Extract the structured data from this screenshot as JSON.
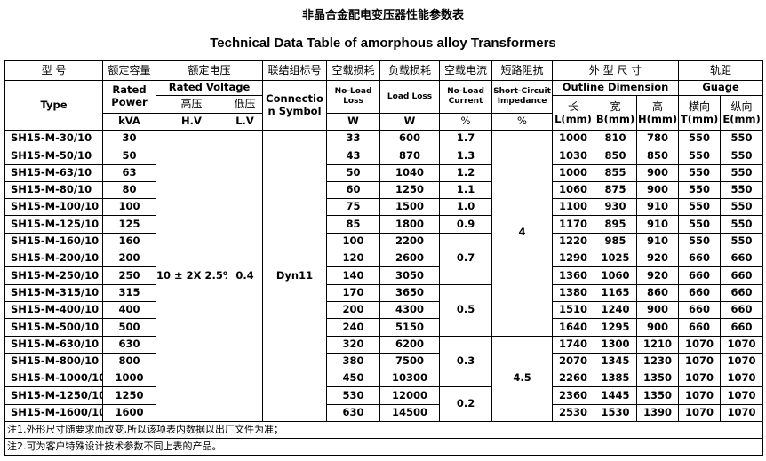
{
  "title_cn": "非晶合金配电变压器性能参数表",
  "title_en": "Technical Data Table of amorphous  alloy Transformers",
  "header": {
    "type_cn": "型  号",
    "type_en": "Type",
    "power_cn": "额定容量",
    "power_en": "Rated Power",
    "power_unit": "kVA",
    "voltage_cn": "额定电压",
    "voltage_en": "Rated Voltage",
    "hv_cn": "高压",
    "hv_en": "H.V",
    "lv_cn": "低压",
    "lv_en": "L.V",
    "conn_cn": "联结组标号",
    "conn_en": "Connection Symbol",
    "nll_cn": "空载损耗",
    "nll_en": "No-Load Loss",
    "nll_unit": "W",
    "ll_cn": "负载损耗",
    "ll_en": "Load Loss",
    "ll_unit": "W",
    "nlc_cn": "空载电流",
    "nlc_en": "No-Load Current",
    "nlc_unit": "%",
    "imp_cn": "短路阻抗",
    "imp_en": "Short-Circuit Impedance",
    "imp_unit": "%",
    "dim_cn": "外 型 尺 寸",
    "dim_en": "Outline Dimension",
    "l_cn": "长",
    "l_en": "L(mm)",
    "b_cn": "宽",
    "b_en": "B(mm)",
    "h_cn": "高",
    "h_en": "H(mm)",
    "gauge_cn": "轨距",
    "gauge_en": "Guage",
    "t_cn": "横向",
    "t_en": "T(mm)",
    "e_cn": "纵向",
    "e_en": "E(mm)"
  },
  "common": {
    "hv": "10 ± 2X 2.5%",
    "lv": "0.4",
    "conn": "Dyn11"
  },
  "rows": [
    [
      "SH15-M-30/10",
      "30",
      "33",
      "600",
      "1000",
      "810",
      "780",
      "550",
      "550"
    ],
    [
      "SH15-M-50/10",
      "50",
      "43",
      "870",
      "1030",
      "850",
      "850",
      "550",
      "550"
    ],
    [
      "SH15-M-63/10",
      "63",
      "50",
      "1040",
      "1000",
      "855",
      "900",
      "550",
      "550"
    ],
    [
      "SH15-M-80/10",
      "80",
      "60",
      "1250",
      "1060",
      "875",
      "900",
      "550",
      "550"
    ],
    [
      "SH15-M-100/10",
      "100",
      "75",
      "1500",
      "1100",
      "930",
      "910",
      "550",
      "550"
    ],
    [
      "SH15-M-125/10",
      "125",
      "85",
      "1800",
      "1170",
      "895",
      "910",
      "550",
      "550"
    ],
    [
      "SH15-M-160/10",
      "160",
      "100",
      "2200",
      "1220",
      "985",
      "910",
      "550",
      "550"
    ],
    [
      "SH15-M-200/10",
      "200",
      "120",
      "2600",
      "1290",
      "1025",
      "920",
      "660",
      "660"
    ],
    [
      "SH15-M-250/10",
      "250",
      "140",
      "3050",
      "1360",
      "1060",
      "920",
      "660",
      "660"
    ],
    [
      "SH15-M-315/10",
      "315",
      "170",
      "3650",
      "1380",
      "1165",
      "860",
      "660",
      "660"
    ],
    [
      "SH15-M-400/10",
      "400",
      "200",
      "4300",
      "1510",
      "1240",
      "900",
      "660",
      "660"
    ],
    [
      "SH15-M-500/10",
      "500",
      "240",
      "5150",
      "1640",
      "1295",
      "900",
      "660",
      "660"
    ],
    [
      "SH15-M-630/10",
      "630",
      "320",
      "6200",
      "1740",
      "1300",
      "1210",
      "1070",
      "1070"
    ],
    [
      "SH15-M-800/10",
      "800",
      "380",
      "7500",
      "2070",
      "1345",
      "1230",
      "1070",
      "1070"
    ],
    [
      "SH15-M-1000/10",
      "1000",
      "450",
      "10300",
      "2260",
      "1385",
      "1350",
      "1070",
      "1070"
    ],
    [
      "SH15-M-1250/10",
      "1250",
      "530",
      "12000",
      "2360",
      "1445",
      "1350",
      "1070",
      "1070"
    ],
    [
      "SH15-M-1600/10",
      "1600",
      "630",
      "14500",
      "2530",
      "1530",
      "1390",
      "1070",
      "1070"
    ]
  ],
  "current_groups": [
    {
      "value": "1.7",
      "span": 1
    },
    {
      "value": "1.3",
      "span": 1
    },
    {
      "value": "1.2",
      "span": 1
    },
    {
      "value": "1.1",
      "span": 1
    },
    {
      "value": "1.0",
      "span": 1
    },
    {
      "value": "0.9",
      "span": 1
    },
    {
      "value": "0.7",
      "span": 3
    },
    {
      "value": "0.5",
      "span": 3
    },
    {
      "value": "0.3",
      "span": 3
    },
    {
      "value": "0.2",
      "span": 2
    }
  ],
  "impedance_groups": [
    {
      "value": "4",
      "span": 12
    },
    {
      "value": "4.5",
      "span": 5
    }
  ],
  "notes": [
    "注1.外形尺寸随要求而改变,所以该项表内数据以出厂文件为准；",
    "注2.可为客户特殊设计技术参数不同上表的产品。"
  ]
}
